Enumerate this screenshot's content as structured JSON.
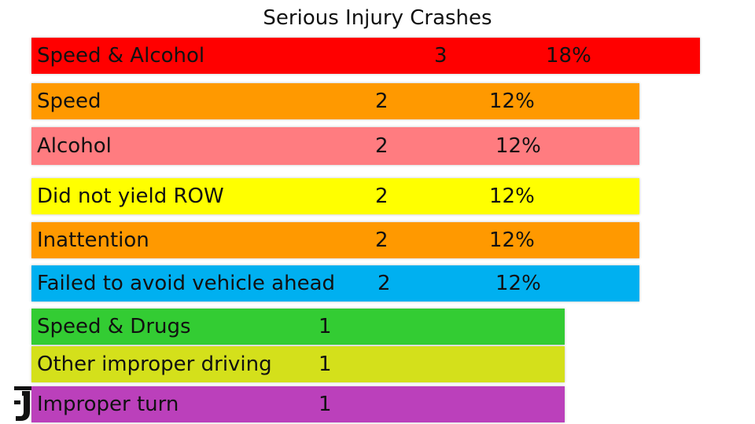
{
  "title": "Serious Injury Crashes",
  "chart_data": {
    "type": "bar",
    "categories": [
      "Speed & Alcohol",
      "Speed",
      "Alcohol",
      "Did not yield ROW",
      "Inattention",
      "Failed to avoid vehicle ahead",
      "Speed & Drugs",
      "Other improper driving",
      "Improper turn"
    ],
    "values": [
      3,
      2,
      2,
      2,
      2,
      2,
      1,
      1,
      1
    ],
    "percent_labels": [
      "18%",
      "12%",
      "12%",
      "12%",
      "12%",
      "12%",
      "",
      "",
      ""
    ],
    "colors": [
      "#ff0000",
      "#ff9900",
      "#ff7c80",
      "#ffff00",
      "#ff9900",
      "#00b0f0",
      "#33cc33",
      "#d4e01b",
      "#bb40bb"
    ],
    "title": "Serious Injury Crashes",
    "xlabel": "",
    "ylabel": "",
    "grid": false,
    "legend": "none"
  }
}
